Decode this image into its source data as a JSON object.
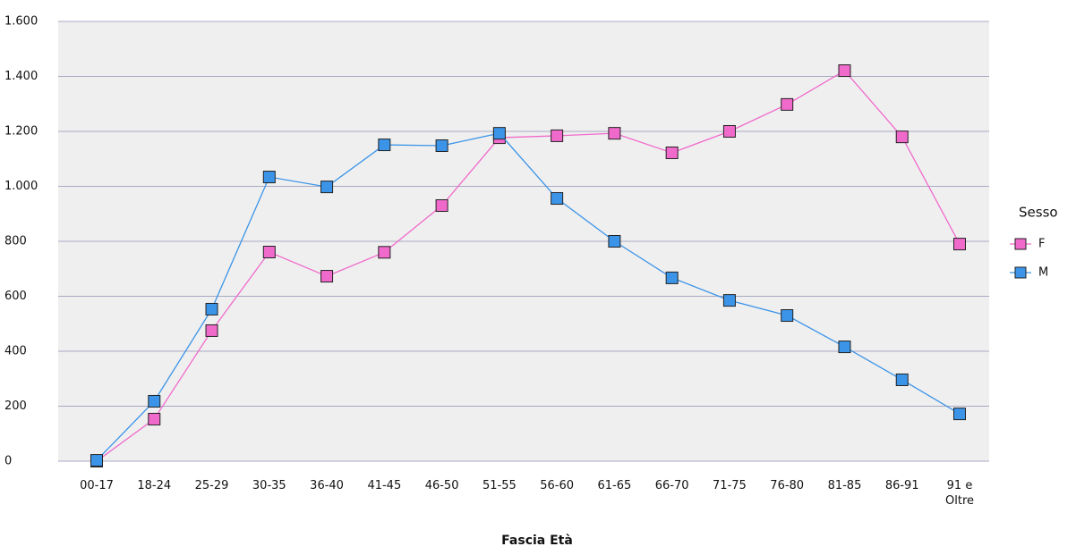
{
  "chart_data": {
    "type": "line",
    "x_label": "Fascia Età",
    "legend_title": "Sesso",
    "legend": "right",
    "grid": true,
    "categories": [
      "00-17",
      "18-24",
      "25-29",
      "30-35",
      "36-40",
      "41-45",
      "46-50",
      "51-55",
      "56-60",
      "61-65",
      "66-70",
      "71-75",
      "76-80",
      "81-85",
      "86-91",
      "91 e\nOltre"
    ],
    "series": [
      {
        "name": "F",
        "color": "#f06acb",
        "values": [
          0,
          153,
          475,
          761,
          673,
          760,
          930,
          1177,
          1184,
          1193,
          1122,
          1200,
          1298,
          1421,
          1180,
          790
        ]
      },
      {
        "name": "M",
        "color": "#3b94e8",
        "values": [
          3,
          218,
          553,
          1034,
          998,
          1151,
          1148,
          1193,
          956,
          800,
          667,
          585,
          530,
          416,
          296,
          172
        ]
      }
    ],
    "ylim": [
      0,
      1600
    ],
    "yticks": [
      0,
      200,
      400,
      600,
      800,
      {
        "value": 1000,
        "label": "1.000"
      },
      {
        "value": 1200,
        "label": "1.200"
      },
      {
        "value": 1400,
        "label": "1.400"
      },
      {
        "value": 1600,
        "label": "1.600"
      }
    ]
  }
}
